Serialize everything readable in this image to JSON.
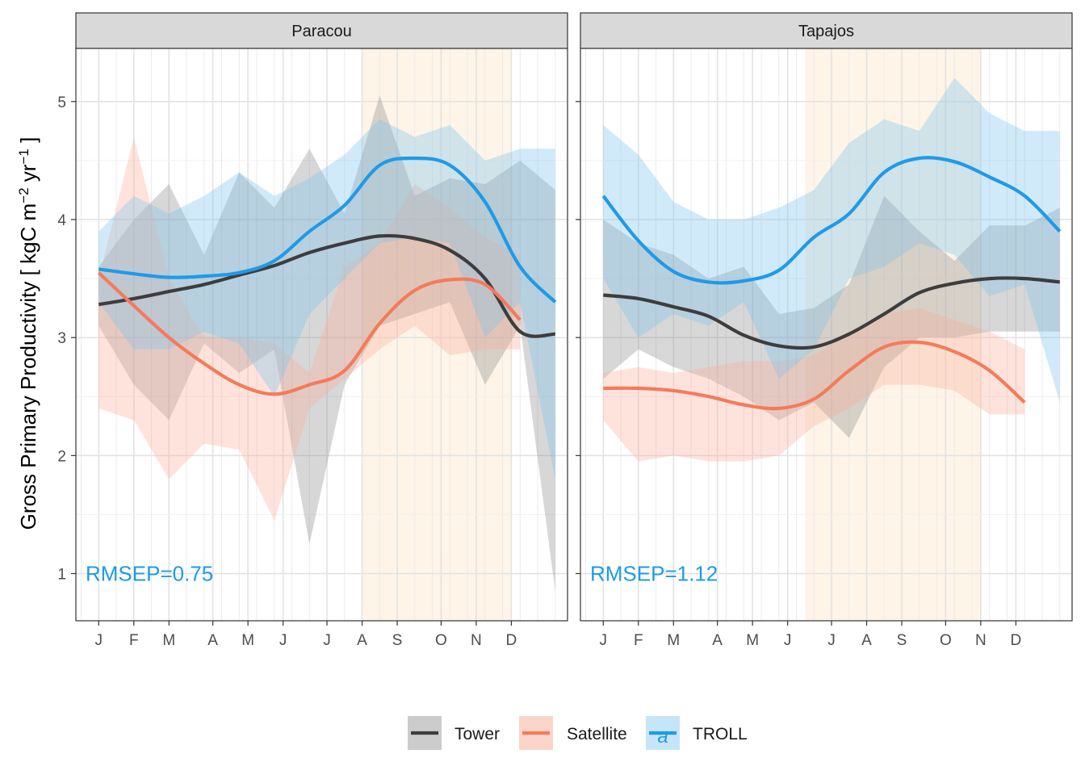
{
  "chart_data": {
    "type": "line",
    "y_label": "Gross Primary Productivity [ kgC m",
    "y_label_sup1": "−2",
    "y_label_mid": " yr",
    "y_label_sup2": "−1",
    "y_label_end": " ]",
    "ylim": [
      0.6,
      5.45
    ],
    "y_ticks": [
      1,
      2,
      3,
      4,
      5
    ],
    "month_ticks": [
      {
        "label": "J",
        "x": 1
      },
      {
        "label": "F",
        "x": 2
      },
      {
        "label": "M",
        "x": 3
      },
      {
        "label": "A",
        "x": 4.25
      },
      {
        "label": "M",
        "x": 5.25
      },
      {
        "label": "J",
        "x": 6.25
      },
      {
        "label": "J",
        "x": 7.5
      },
      {
        "label": "A",
        "x": 8.5
      },
      {
        "label": "S",
        "x": 9.5
      },
      {
        "label": "O",
        "x": 10.75
      },
      {
        "label": "N",
        "x": 11.75
      },
      {
        "label": "D",
        "x": 12.75
      }
    ],
    "xlim": [
      0.35,
      14.35
    ],
    "grid": true,
    "legend_position": "bottom",
    "series_styles": [
      {
        "name": "Tower",
        "color": "#3d3d3d",
        "fill": "#8c8c8c"
      },
      {
        "name": "Satellite",
        "color": "#f47b5a",
        "fill": "#f9b09c"
      },
      {
        "name": "TROLL",
        "color": "#1e9be8",
        "fill": "#7cc4ef"
      }
    ],
    "panels": [
      {
        "title": "Paracou",
        "rmsep": "RMSEP=0.75",
        "dry_season": [
          8.5,
          12.75
        ],
        "series": [
          {
            "name": "Tower",
            "x": [
              1,
              2,
              3,
              4,
              5,
              6,
              7,
              8,
              9,
              10,
              11,
              12,
              13,
              14
            ],
            "smooth": [
              3.28,
              3.33,
              3.39,
              3.45,
              3.53,
              3.61,
              3.72,
              3.8,
              3.86,
              3.84,
              3.74,
              3.5,
              3.05,
              3.03
            ],
            "lower": [
              3.1,
              2.6,
              2.3,
              2.95,
              2.7,
              2.9,
              1.25,
              2.6,
              3.1,
              3.2,
              3.3,
              2.6,
              3.1,
              0.85
            ],
            "upper": [
              3.6,
              4.0,
              4.3,
              3.7,
              4.4,
              4.1,
              4.6,
              4.05,
              5.05,
              4.2,
              4.35,
              4.3,
              4.5,
              4.25
            ]
          },
          {
            "name": "Satellite",
            "x": [
              1,
              2,
              3,
              4,
              5,
              6,
              7,
              8,
              9,
              10,
              11,
              12,
              13
            ],
            "smooth": [
              3.55,
              3.27,
              3.0,
              2.78,
              2.6,
              2.52,
              2.6,
              2.72,
              3.12,
              3.4,
              3.49,
              3.45,
              3.15
            ],
            "lower": [
              2.4,
              2.3,
              1.8,
              2.1,
              2.05,
              1.45,
              2.4,
              2.65,
              2.9,
              3.1,
              2.85,
              2.9,
              2.9
            ],
            "upper": [
              3.5,
              4.7,
              3.5,
              3.0,
              3.0,
              2.95,
              2.7,
              3.6,
              3.8,
              4.3,
              4.1,
              3.85,
              3.7
            ]
          },
          {
            "name": "TROLL",
            "x": [
              1,
              2,
              3,
              4,
              5,
              6,
              7,
              8,
              9,
              10,
              11,
              12,
              13,
              14
            ],
            "smooth": [
              3.58,
              3.54,
              3.51,
              3.52,
              3.55,
              3.65,
              3.9,
              4.12,
              4.46,
              4.52,
              4.46,
              4.15,
              3.6,
              3.3
            ],
            "lower": [
              3.3,
              2.9,
              2.9,
              3.05,
              2.95,
              2.5,
              3.2,
              3.5,
              3.8,
              3.85,
              3.8,
              3.0,
              3.3,
              1.8
            ],
            "upper": [
              3.9,
              4.2,
              4.05,
              4.2,
              4.4,
              4.2,
              4.35,
              4.55,
              4.85,
              4.7,
              4.8,
              4.5,
              4.6,
              4.6
            ]
          }
        ]
      },
      {
        "title": "Tapajos",
        "rmsep": "RMSEP=1.12",
        "dry_season": [
          6.75,
          11.75
        ],
        "series": [
          {
            "name": "Tower",
            "x": [
              1,
              2,
              3,
              4,
              5,
              6,
              7,
              8,
              9,
              10,
              11,
              12,
              13,
              14
            ],
            "smooth": [
              3.36,
              3.33,
              3.26,
              3.18,
              3.02,
              2.93,
              2.92,
              3.03,
              3.2,
              3.38,
              3.46,
              3.5,
              3.5,
              3.47
            ],
            "lower": [
              2.65,
              2.9,
              2.75,
              2.65,
              2.5,
              2.3,
              2.45,
              2.15,
              2.75,
              3.0,
              3.0,
              3.05,
              3.05,
              3.05
            ],
            "upper": [
              4.0,
              3.8,
              3.7,
              3.5,
              3.6,
              3.2,
              3.25,
              3.45,
              4.2,
              3.9,
              3.65,
              3.95,
              3.95,
              4.1
            ]
          },
          {
            "name": "Satellite",
            "x": [
              1,
              2,
              3,
              4,
              5,
              6,
              7,
              8,
              9,
              10,
              11,
              12,
              13
            ],
            "smooth": [
              2.57,
              2.57,
              2.55,
              2.5,
              2.43,
              2.4,
              2.48,
              2.72,
              2.92,
              2.96,
              2.88,
              2.72,
              2.45
            ],
            "lower": [
              2.3,
              1.95,
              2.0,
              1.95,
              1.95,
              2.0,
              2.25,
              2.4,
              2.6,
              2.6,
              2.55,
              2.35,
              2.35
            ],
            "upper": [
              2.7,
              2.75,
              2.7,
              2.75,
              2.8,
              2.8,
              2.85,
              3.05,
              3.2,
              3.25,
              3.15,
              3.05,
              2.9
            ]
          },
          {
            "name": "TROLL",
            "x": [
              1,
              2,
              3,
              4,
              5,
              6,
              7,
              8,
              9,
              10,
              11,
              12,
              13,
              14
            ],
            "smooth": [
              4.2,
              3.82,
              3.56,
              3.47,
              3.48,
              3.57,
              3.85,
              4.05,
              4.4,
              4.52,
              4.49,
              4.36,
              4.2,
              3.9
            ],
            "lower": [
              3.5,
              3.0,
              3.2,
              3.1,
              3.3,
              2.65,
              2.9,
              3.5,
              3.6,
              3.8,
              3.7,
              3.35,
              3.45,
              2.45
            ],
            "upper": [
              4.8,
              4.55,
              4.15,
              4.0,
              4.0,
              4.1,
              4.25,
              4.65,
              4.85,
              4.75,
              5.2,
              4.9,
              4.75,
              4.75
            ]
          }
        ]
      }
    ]
  },
  "legend": {
    "items": [
      {
        "label": "Tower",
        "color": "#3d3d3d",
        "fill": "#cccccc"
      },
      {
        "label": "Satellite",
        "color": "#f47b5a",
        "fill": "#fbd5c9"
      },
      {
        "label": "TROLL",
        "color": "#1e9be8",
        "fill": "#c7e5f8",
        "glyph": "a"
      }
    ]
  }
}
